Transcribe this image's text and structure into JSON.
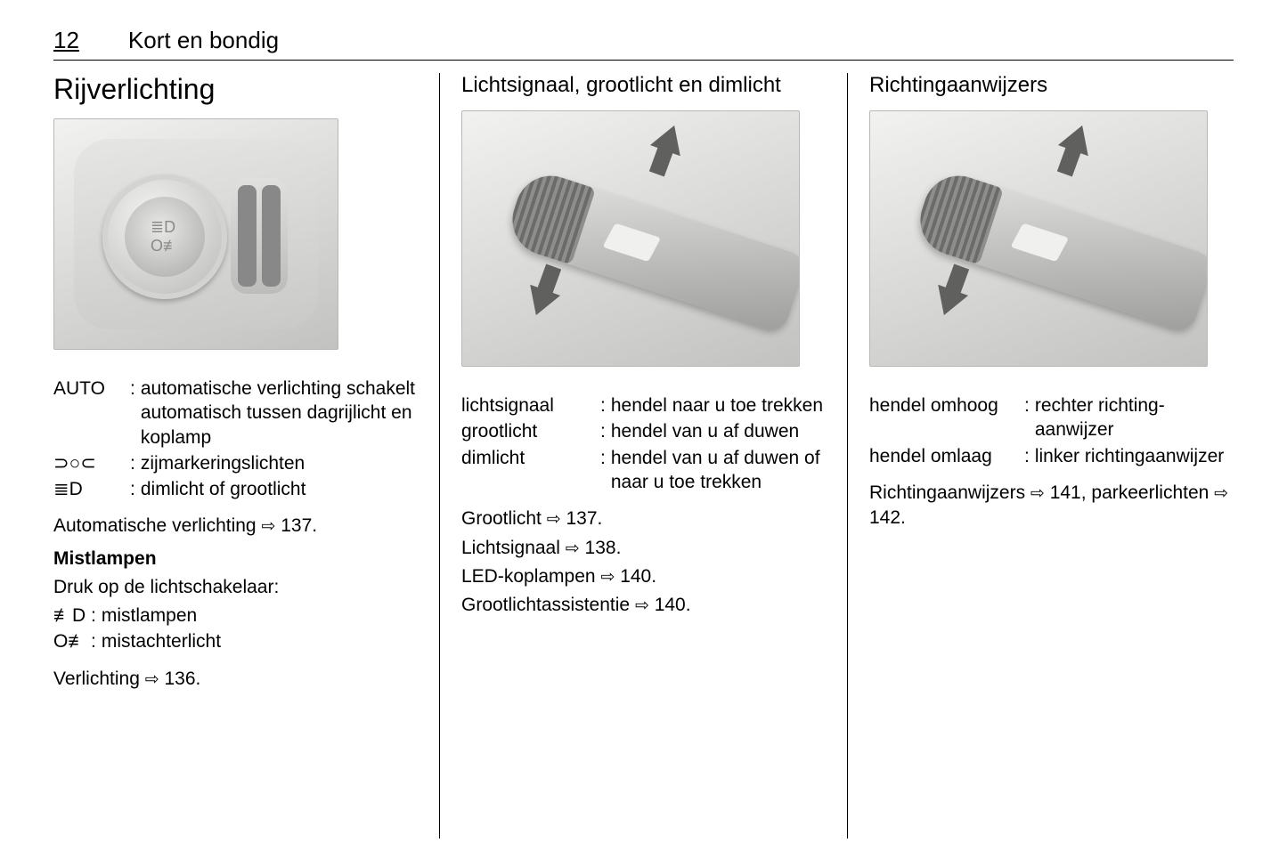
{
  "page": {
    "number": "12",
    "chapter": "Kort en bondig"
  },
  "ref_symbol": "⇨",
  "col1": {
    "title": "Rijverlichting",
    "switch_defs": [
      {
        "term": "AUTO",
        "term_w": 80,
        "desc": "automatische verlichting schakelt automatisch tussen dagrijlicht en koplamp"
      },
      {
        "term": "⊃○⊂",
        "term_w": 80,
        "desc": "zijmarkeringslichten",
        "sym": true
      },
      {
        "term": "≣D",
        "term_w": 80,
        "desc": "dimlicht of grootlicht",
        "sym": true
      }
    ],
    "auto_ref": {
      "text": "Automatische verlichting",
      "page": "137"
    },
    "fog_heading": "Mistlampen",
    "fog_intro": "Druk op de lichtschakelaar:",
    "fog_defs": [
      {
        "term": "≢D",
        "term_w": 36,
        "desc": "mistlampen",
        "sym": true
      },
      {
        "term": "O≢",
        "term_w": 36,
        "desc": "mistachterlicht",
        "sym": true
      }
    ],
    "lighting_ref": {
      "text": "Verlichting",
      "page": "136"
    }
  },
  "col2": {
    "title": "Lichtsignaal, grootlicht en dimlicht",
    "defs": [
      {
        "term": "lichtsignaal",
        "term_w": 150,
        "desc": "hendel naar u toe trekken"
      },
      {
        "term": "grootlicht",
        "term_w": 150,
        "desc": "hendel van u af duwen"
      },
      {
        "term": "dimlicht",
        "term_w": 150,
        "desc": "hendel van u af duwen of naar u toe trekken"
      }
    ],
    "refs": [
      {
        "text": "Grootlicht",
        "page": "137"
      },
      {
        "text": "Lichtsignaal",
        "page": "138"
      },
      {
        "text": "LED-koplampen",
        "page": "140"
      },
      {
        "text": "Grootlichtassistentie",
        "page": "140"
      }
    ]
  },
  "col3": {
    "title": "Richtingaanwijzers",
    "defs": [
      {
        "term": "hendel omhoog",
        "term_w": 168,
        "desc": "rechter richting­aanwijzer"
      },
      {
        "term": "hendel omlaag",
        "term_w": 168,
        "desc": "linker richtingaan­wijzer"
      }
    ],
    "refs_inline": {
      "a_text": "Richtingaanwijzers",
      "a_page": "141",
      "b_text": "parkeer­lichten",
      "b_page": "142"
    }
  }
}
